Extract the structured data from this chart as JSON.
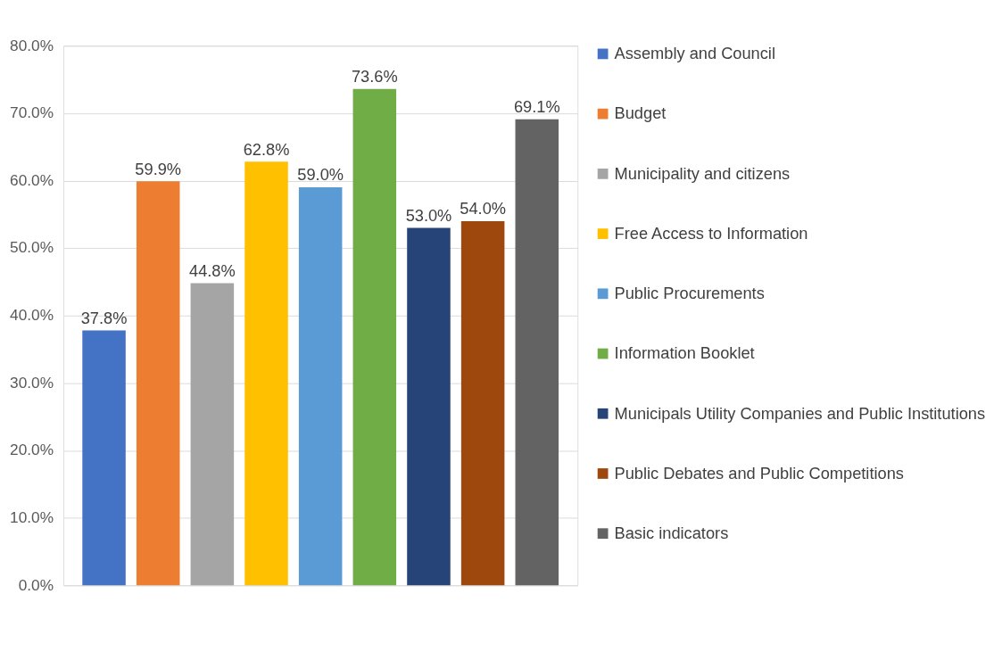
{
  "chart_data": {
    "type": "bar",
    "categories": [
      null
    ],
    "series": [
      {
        "name": "Assembly and Council",
        "color": "#4472c4",
        "values": [
          37.8
        ],
        "value_labels": [
          "37.8%"
        ]
      },
      {
        "name": "Budget",
        "color": "#ed7d31",
        "values": [
          59.9
        ],
        "value_labels": [
          "59.9%"
        ]
      },
      {
        "name": "Municipality and citizens",
        "color": "#a5a5a5",
        "values": [
          44.8
        ],
        "value_labels": [
          "44.8%"
        ]
      },
      {
        "name": "Free Access to Information",
        "color": "#ffc000",
        "values": [
          62.8
        ],
        "value_labels": [
          "62.8%"
        ]
      },
      {
        "name": "Public Procurements",
        "color": "#5b9bd5",
        "values": [
          59.0
        ],
        "value_labels": [
          "59.0%"
        ]
      },
      {
        "name": "Information Booklet",
        "color": "#70ad47",
        "values": [
          73.6
        ],
        "value_labels": [
          "73.6%"
        ]
      },
      {
        "name": "Municipals Utility Companies and Public Institutions",
        "color": "#264478",
        "values": [
          53.0
        ],
        "value_labels": [
          "53.0%"
        ]
      },
      {
        "name": "Public Debates and Public Competitions",
        "color": "#9e480e",
        "values": [
          54.0
        ],
        "value_labels": [
          "54.0%"
        ]
      },
      {
        "name": "Basic indicators",
        "color": "#636363",
        "values": [
          69.1
        ],
        "value_labels": [
          "69.1%"
        ]
      }
    ],
    "ylim": [
      0,
      80
    ],
    "yticks": [
      {
        "value": 0,
        "label": "0.0%"
      },
      {
        "value": 10,
        "label": "10.0%"
      },
      {
        "value": 20,
        "label": "20.0%"
      },
      {
        "value": 30,
        "label": "30.0%"
      },
      {
        "value": 40,
        "label": "40.0%"
      },
      {
        "value": 50,
        "label": "50.0%"
      },
      {
        "value": 60,
        "label": "60.0%"
      },
      {
        "value": 70,
        "label": "70.0%"
      },
      {
        "value": 80,
        "label": "80.0%"
      }
    ],
    "grid": "y",
    "legend": "right",
    "tick_labels": "y"
  }
}
